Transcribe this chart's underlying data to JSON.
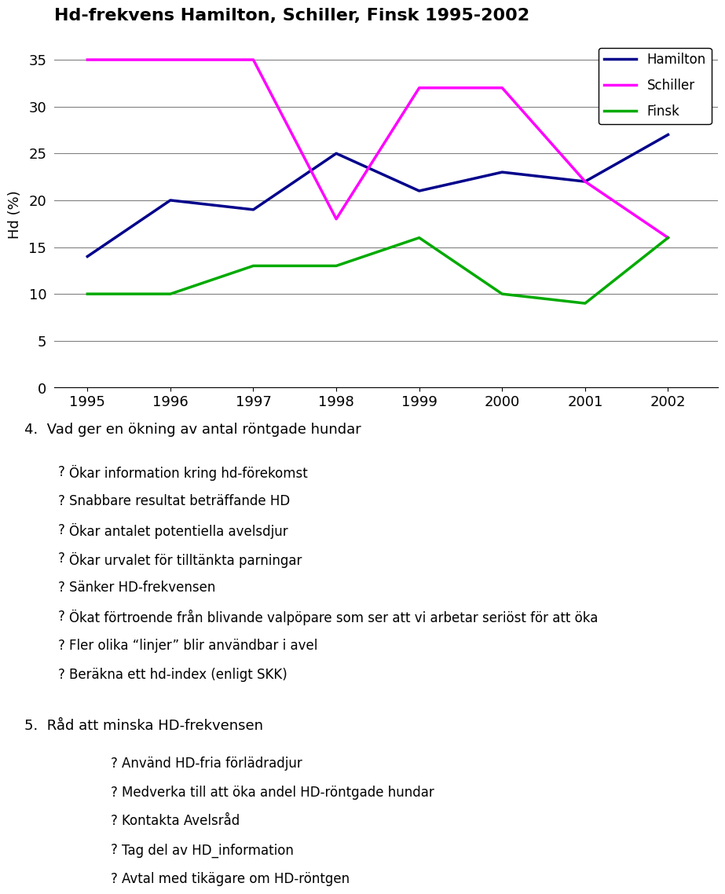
{
  "title": "Hd-frekvens Hamilton, Schiller, Finsk 1995-2002",
  "years": [
    1995,
    1996,
    1997,
    1998,
    1999,
    2000,
    2001,
    2002
  ],
  "hamilton": [
    14,
    20,
    19,
    25,
    21,
    23,
    22,
    27
  ],
  "schiller": [
    35,
    35,
    35,
    18,
    32,
    32,
    22,
    16
  ],
  "finsk": [
    10,
    10,
    13,
    13,
    16,
    10,
    9,
    16
  ],
  "hamilton_color": "#00008B",
  "schiller_color": "#FF00FF",
  "finsk_color": "#00AA00",
  "ylabel": "Hd (%)",
  "ylim": [
    0,
    37
  ],
  "yticks": [
    0,
    5,
    10,
    15,
    20,
    25,
    30,
    35
  ],
  "bg_color": "#FFFFFF",
  "legend_labels": [
    "Hamilton",
    "Schiller",
    "Finsk"
  ],
  "text_section4_header": "4.  Vad ger en ökning av antal röntgade hundar",
  "text_section4_items": [
    "Ökar information kring hd-förekomst",
    "Snabbare resultat beträffande HD",
    "Ökar antalet potentiella avelsdjur",
    "Ökar urvalet för tilltänkta parningar",
    "Sänker HD-frekvensen",
    "Ökat förtroende från blivande valpöpare som ser att vi arbetar seriöst för att öka",
    "Fler olika “linjer” blir användbar i avel",
    "Beräkna ett hd-index (enligt SKK)"
  ],
  "text_section5_header": "5.  Råd att minska HD-frekvensen",
  "text_section5_items": [
    "Använd HD-fria förlädradjur",
    "Medverka till att öka andel HD-röntgade hundar",
    "Kontakta Avelsråd",
    "Tag del av HD_information",
    "Avtal med tikägare om HD-röntgen"
  ]
}
